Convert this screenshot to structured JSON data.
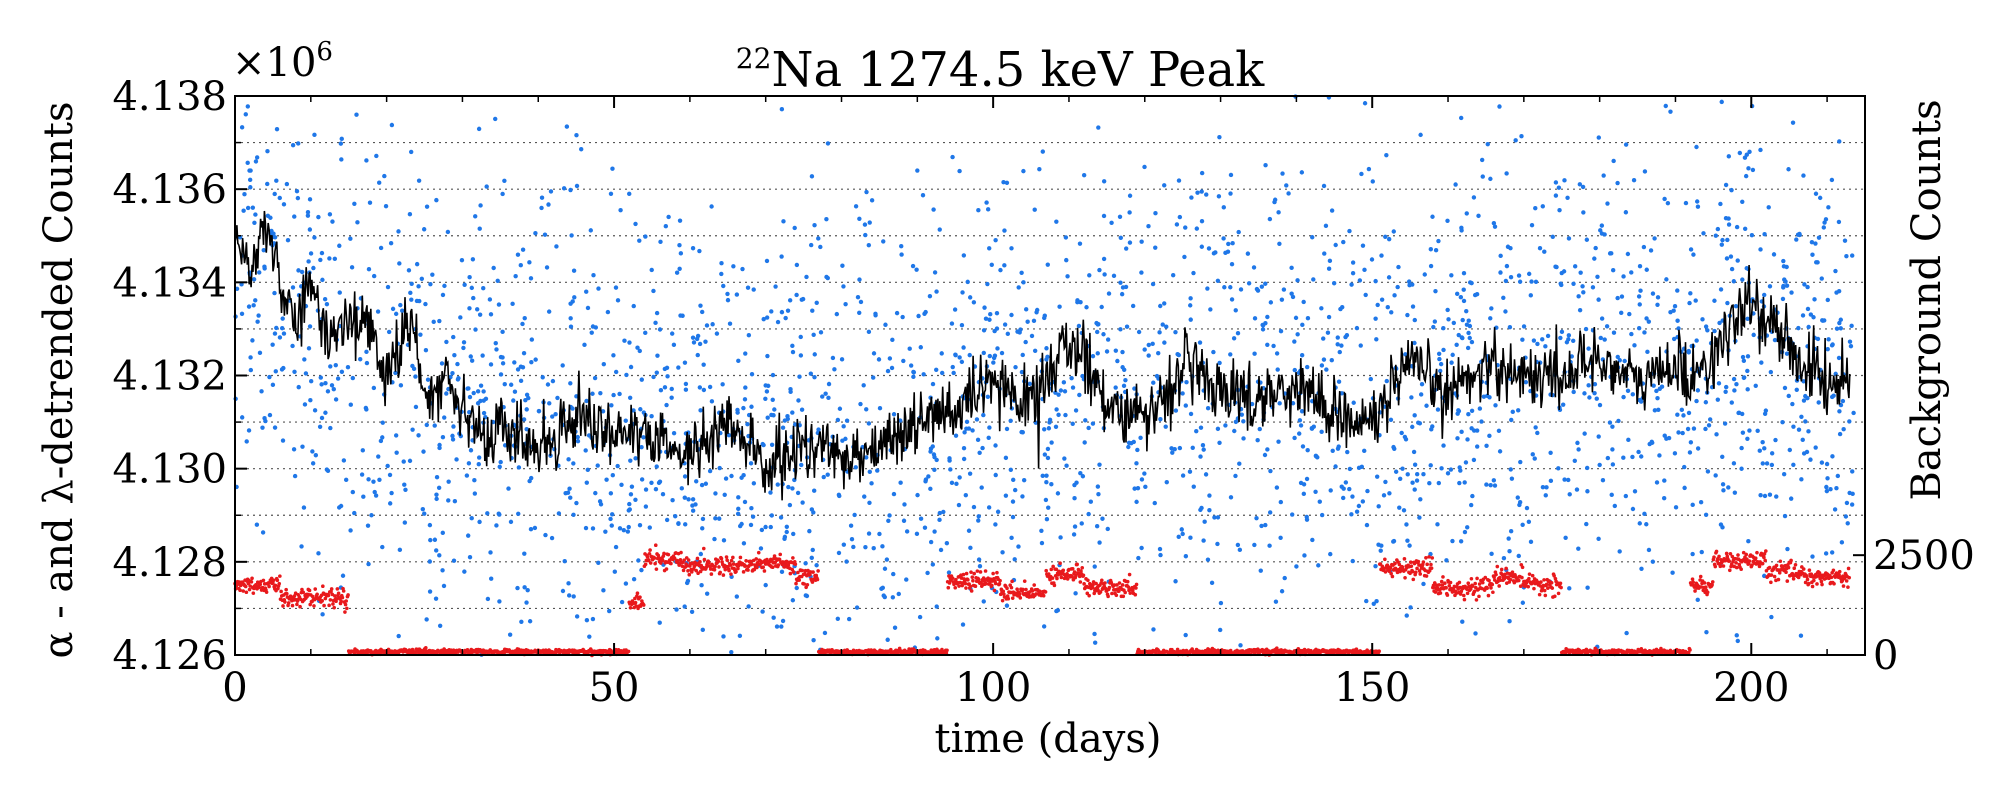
{
  "chart_data": {
    "type": "scatter",
    "title": "Na 1274.5 keV Peak",
    "title_superscript": "22",
    "xlabel": "time (days)",
    "ylabel": "α - and λ-detrended Counts",
    "ylabel_right": "Background Counts",
    "y_multiplier_base": "×10",
    "y_multiplier_exp": "6",
    "xlim": [
      0,
      215
    ],
    "ylim": [
      4.126,
      4.138
    ],
    "ylim_right": [
      0,
      14000
    ],
    "x_ticks": [
      0,
      50,
      100,
      150,
      200
    ],
    "x_tick_labels": [
      "0",
      "50",
      "100",
      "150",
      "200"
    ],
    "y_ticks": [
      4.126,
      4.128,
      4.13,
      4.132,
      4.134,
      4.136,
      4.138
    ],
    "y_tick_labels": [
      "4.126",
      "4.128",
      "4.130",
      "4.132",
      "4.134",
      "4.136",
      "4.138"
    ],
    "y_right_ticks": [
      0,
      2500
    ],
    "y_right_tick_labels": [
      "0",
      "2500"
    ],
    "grid": "horizontal dotted",
    "colors": {
      "scatter": "#1f77e8",
      "trend": "#000000",
      "background": "#e8191c"
    },
    "series": [
      {
        "name": "detrended counts (scatter)",
        "style": "points",
        "color": "#1f77e8",
        "sample_points": [
          [
            2,
            4.1362
          ],
          [
            5,
            4.1318
          ],
          [
            11,
            4.1354
          ],
          [
            18,
            4.129
          ],
          [
            24,
            4.1336
          ],
          [
            31,
            4.1281
          ],
          [
            38,
            4.1347
          ],
          [
            44,
            4.1302
          ],
          [
            52,
            4.1359
          ],
          [
            57,
            4.1289
          ],
          [
            63,
            4.1331
          ],
          [
            70,
            4.1275
          ],
          [
            76,
            4.1348
          ],
          [
            83,
            4.1294
          ],
          [
            90,
            4.1364
          ],
          [
            97,
            4.1283
          ],
          [
            104,
            4.134
          ],
          [
            111,
            4.1297
          ],
          [
            118,
            4.1355
          ],
          [
            125,
            4.1286
          ],
          [
            132,
            4.1334
          ],
          [
            140,
            4.1279
          ],
          [
            147,
            4.1351
          ],
          [
            154,
            4.13
          ],
          [
            161,
            4.1361
          ],
          [
            168,
            4.1285
          ],
          [
            175,
            4.1342
          ],
          [
            182,
            4.1292
          ],
          [
            189,
            4.1357
          ],
          [
            196,
            4.1288
          ],
          [
            203,
            4.1346
          ],
          [
            210,
            4.1301
          ]
        ],
        "mean_profile": {
          "x": [
            0,
            5,
            10,
            15,
            20,
            25,
            30,
            40,
            50,
            60,
            70,
            80,
            90,
            100,
            110,
            120,
            130,
            140,
            150,
            160,
            170,
            180,
            190,
            200,
            210,
            214
          ],
          "y": [
            4.1345,
            4.1338,
            4.133,
            4.1326,
            4.1322,
            4.1318,
            4.1313,
            4.1309,
            4.1307,
            4.1307,
            4.1306,
            4.1308,
            4.1311,
            4.1314,
            4.1317,
            4.1316,
            4.1318,
            4.1317,
            4.1318,
            4.132,
            4.1321,
            4.1323,
            4.1322,
            4.1327,
            4.1324,
            4.1322
          ]
        },
        "spread": 0.0045
      },
      {
        "name": "detrended counts (running average)",
        "style": "line",
        "color": "#000000",
        "x": [
          0,
          2,
          4,
          6,
          8,
          10,
          12,
          15,
          18,
          20,
          23,
          25,
          28,
          30,
          33,
          35,
          40,
          45,
          50,
          55,
          60,
          65,
          70,
          75,
          80,
          85,
          90,
          95,
          100,
          105,
          110,
          115,
          120,
          125,
          130,
          135,
          140,
          145,
          150,
          155,
          160,
          165,
          170,
          175,
          180,
          185,
          189,
          192,
          195,
          200,
          205,
          210,
          213
        ],
        "y": [
          4.135,
          4.134,
          4.1355,
          4.1338,
          4.1332,
          4.1339,
          4.1328,
          4.1333,
          4.133,
          4.1318,
          4.1333,
          4.1315,
          4.132,
          4.1315,
          4.1305,
          4.1309,
          4.1304,
          4.1312,
          4.1308,
          4.1306,
          4.1303,
          4.131,
          4.13,
          4.1305,
          4.1303,
          4.1305,
          4.131,
          4.1312,
          4.1318,
          4.1314,
          4.1328,
          4.1315,
          4.131,
          4.1322,
          4.1317,
          4.1315,
          4.1318,
          4.1312,
          4.131,
          4.1322,
          4.1316,
          4.1323,
          4.132,
          4.132,
          4.1324,
          4.1318,
          4.1322,
          4.132,
          4.1324,
          4.1336,
          4.1326,
          4.1318,
          4.132
        ]
      },
      {
        "name": "background counts",
        "style": "points",
        "color": "#e8191c",
        "axis": "right",
        "segments": [
          {
            "x": [
              0,
              6
            ],
            "level": 1750
          },
          {
            "x": [
              6,
              15
            ],
            "level": 1450
          },
          {
            "x": [
              15,
              52
            ],
            "level": 80
          },
          {
            "x": [
              52,
              54
            ],
            "level": 1300
          },
          {
            "x": [
              54,
              59
            ],
            "level": 2400
          },
          {
            "x": [
              59,
              68
            ],
            "level": 2250
          },
          {
            "x": [
              68,
              74
            ],
            "level": 2300
          },
          {
            "x": [
              74,
              77
            ],
            "level": 1950
          },
          {
            "x": [
              77,
              94
            ],
            "level": 80
          },
          {
            "x": [
              94,
              101
            ],
            "level": 1850
          },
          {
            "x": [
              101,
              107
            ],
            "level": 1550
          },
          {
            "x": [
              107,
              112
            ],
            "level": 2050
          },
          {
            "x": [
              112,
              119
            ],
            "level": 1700
          },
          {
            "x": [
              119,
              151
            ],
            "level": 80
          },
          {
            "x": [
              151,
              158
            ],
            "level": 2150
          },
          {
            "x": [
              158,
              166
            ],
            "level": 1700
          },
          {
            "x": [
              166,
              170
            ],
            "level": 1950
          },
          {
            "x": [
              170,
              175
            ],
            "level": 1750
          },
          {
            "x": [
              175,
              192
            ],
            "level": 80
          },
          {
            "x": [
              192,
              195
            ],
            "level": 1750
          },
          {
            "x": [
              195,
              202
            ],
            "level": 2350
          },
          {
            "x": [
              202,
              207
            ],
            "level": 2100
          },
          {
            "x": [
              207,
              213
            ],
            "level": 1950
          }
        ]
      }
    ]
  }
}
